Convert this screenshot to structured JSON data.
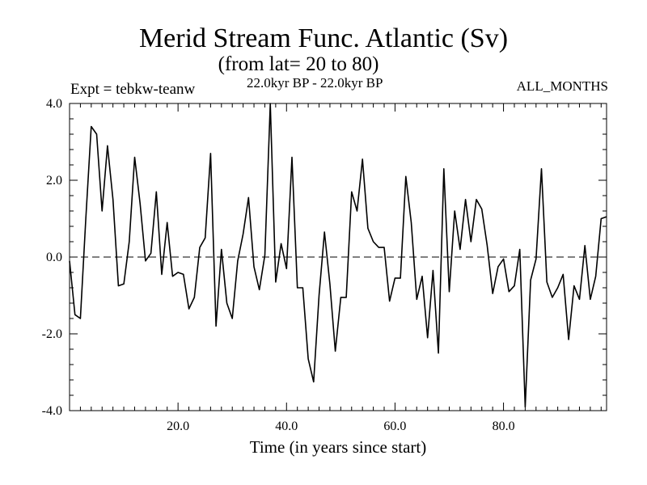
{
  "chart_data": {
    "type": "line",
    "title": "Merid Stream Func. Atlantic (Sv)",
    "subtitle": "(from lat= 20 to 80)",
    "annotations": {
      "experiment": "Expt = tebkw-teanw",
      "period": "22.0kyr BP - 22.0kyr BP",
      "months": "ALL_MONTHS"
    },
    "xlabel": "Time (in years since start)",
    "ylabel": "",
    "xlim": [
      0,
      99
    ],
    "ylim": [
      -4,
      4
    ],
    "xticks": [
      20,
      40,
      60,
      80
    ],
    "xtick_labels": [
      "20.0",
      "40.0",
      "60.0",
      "80.0"
    ],
    "yticks": [
      -4,
      -2,
      0,
      2,
      4
    ],
    "ytick_labels": [
      "-4.0",
      "-2.0",
      "0.0",
      "2.0",
      "4.0"
    ],
    "zero_line": "dashed",
    "series": [
      {
        "name": "Merid Stream Func. Atlantic",
        "x": [
          0,
          1,
          2,
          3,
          4,
          5,
          6,
          7,
          8,
          9,
          10,
          11,
          12,
          13,
          14,
          15,
          16,
          17,
          18,
          19,
          20,
          21,
          22,
          23,
          24,
          25,
          26,
          27,
          28,
          29,
          30,
          31,
          32,
          33,
          34,
          35,
          36,
          37,
          38,
          39,
          40,
          41,
          42,
          43,
          44,
          45,
          46,
          47,
          48,
          49,
          50,
          51,
          52,
          53,
          54,
          55,
          56,
          57,
          58,
          59,
          60,
          61,
          62,
          63,
          64,
          65,
          66,
          67,
          68,
          69,
          70,
          71,
          72,
          73,
          74,
          75,
          76,
          77,
          78,
          79,
          80,
          81,
          82,
          83,
          84,
          85,
          86,
          87,
          88,
          89,
          90,
          91,
          92,
          93,
          94,
          95,
          96,
          97,
          98,
          99
        ],
        "values": [
          -0.1,
          -1.5,
          -1.6,
          1.0,
          3.4,
          3.2,
          1.2,
          2.9,
          1.5,
          -0.75,
          -0.7,
          0.4,
          2.6,
          1.4,
          -0.1,
          0.1,
          1.7,
          -0.45,
          0.9,
          -0.5,
          -0.4,
          -0.45,
          -1.35,
          -1.05,
          0.25,
          0.5,
          2.7,
          -1.8,
          0.2,
          -1.2,
          -1.6,
          -0.1,
          0.6,
          1.55,
          -0.25,
          -0.85,
          0.05,
          4.0,
          -0.65,
          0.35,
          -0.3,
          2.6,
          -0.8,
          -0.8,
          -2.65,
          -3.25,
          -1.0,
          0.65,
          -0.7,
          -2.45,
          -1.05,
          -1.05,
          1.7,
          1.2,
          2.55,
          0.75,
          0.4,
          0.25,
          0.25,
          -1.15,
          -0.55,
          -0.55,
          2.1,
          0.9,
          -1.1,
          -0.5,
          -2.1,
          -0.35,
          -2.5,
          2.3,
          -0.9,
          1.2,
          0.2,
          1.5,
          0.4,
          1.5,
          1.25,
          0.3,
          -0.95,
          -0.25,
          -0.05,
          -0.9,
          -0.75,
          0.2,
          -3.9,
          -0.6,
          -0.05,
          2.3,
          -0.65,
          -1.05,
          -0.8,
          -0.45,
          -2.15,
          -0.75,
          -1.1,
          0.3,
          -1.1,
          -0.5,
          1.0,
          1.05
        ]
      }
    ]
  }
}
